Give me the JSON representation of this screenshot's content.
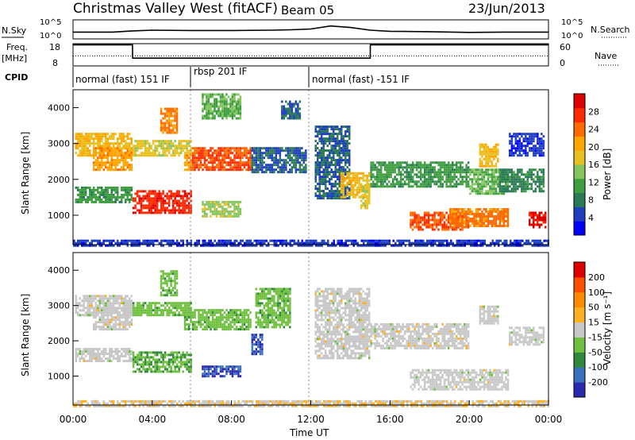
{
  "header": {
    "title": "Christmas Valley West (fitACF)",
    "beam": "Beam 05",
    "date": "23/Jun/2013"
  },
  "strip_labels": {
    "nsky": "N.Sky",
    "nsky_axis": [
      "10^5",
      "10^0"
    ],
    "nsearch": "N.Search",
    "freq": "Freq.",
    "freq_unit": "[MHz]",
    "freq_axis": [
      "18",
      "8"
    ],
    "nave": "Nave",
    "nave_axis": [
      "60",
      "0"
    ],
    "cpid": "CPID"
  },
  "modes": [
    {
      "label": "normal (fast) 151 IF",
      "start": "00:00",
      "end": "06:00"
    },
    {
      "label": "rbsp 201 IF",
      "start": "06:00",
      "end": "12:00"
    },
    {
      "label": "normal (fast) -151 IF",
      "start": "12:00",
      "end": "24:00"
    }
  ],
  "x_axis": {
    "label": "Time UT",
    "ticks": [
      "00:00",
      "04:00",
      "08:00",
      "12:00",
      "16:00",
      "20:00",
      "00:00"
    ]
  },
  "panels": [
    {
      "id": "power",
      "ylabel": "Slant Range [km]",
      "yticks": [
        "4000",
        "3000",
        "2000",
        "1000"
      ],
      "colorbar_title": "Power [dB]",
      "colorbar_ticks": [
        "28",
        "24",
        "20",
        "16",
        "12",
        "8",
        "4"
      ],
      "colors": [
        "#0000ff",
        "#1f3fc0",
        "#2a7a55",
        "#3f9e3f",
        "#85c560",
        "#e8c020",
        "#ffa500",
        "#ff6a00",
        "#ff2a00",
        "#dd0000"
      ]
    },
    {
      "id": "velocity",
      "ylabel": "Slant Range [km]",
      "yticks": [
        "4000",
        "3000",
        "2000",
        "1000"
      ],
      "colorbar_title": "Velocity [m s⁻¹]",
      "colorbar_ticks": [
        "200",
        "100",
        "50",
        "15",
        "-15",
        "-50",
        "-100",
        "-200"
      ],
      "colors": [
        "#2a2ab0",
        "#3a70c0",
        "#2e8a3a",
        "#70c040",
        "#c8c8c8",
        "#ffb020",
        "#ff8a00",
        "#ff5000",
        "#dd0000"
      ]
    }
  ],
  "chart_data": [
    {
      "type": "line",
      "title": "N.Sky / N.Search",
      "xlabel": "Time UT",
      "ylim": [
        0,
        5
      ],
      "x": [
        0,
        2,
        3,
        4,
        6,
        8,
        10,
        11,
        12,
        13,
        14,
        15,
        16,
        18,
        20,
        22,
        24
      ],
      "series": [
        {
          "name": "N.Sky",
          "values": [
            1.8,
            1.8,
            2.1,
            2.3,
            2.2,
            2.2,
            2.3,
            2.4,
            2.6,
            3.4,
            3.0,
            2.3,
            2.0,
            1.9,
            1.7,
            1.8,
            1.8
          ]
        }
      ]
    },
    {
      "type": "line",
      "title": "Freq. / Nave",
      "xlabel": "Time UT",
      "ylim": [
        8,
        18
      ],
      "x": [
        0,
        3,
        3.01,
        15,
        15.01,
        24
      ],
      "series": [
        {
          "name": "Freq.",
          "values": [
            17.5,
            17.5,
            11.5,
            11.5,
            17.5,
            17.5
          ]
        },
        {
          "name": "Nave",
          "values": [
            12.5,
            12.5,
            12.5,
            12.5,
            12.5,
            12.5
          ]
        }
      ]
    },
    {
      "type": "heatmap",
      "title": "Power [dB]",
      "xlabel": "Time UT",
      "ylabel": "Slant Range [km]",
      "xlim": [
        0,
        24
      ],
      "ylim": [
        180,
        4500
      ],
      "clim": [
        0,
        30
      ],
      "blobs": [
        [
          0.1,
          3.0,
          2700,
          3300,
          18
        ],
        [
          1.0,
          3.0,
          2300,
          2900,
          20
        ],
        [
          0.1,
          3.0,
          1400,
          1800,
          10
        ],
        [
          3.0,
          6.0,
          1100,
          1700,
          26
        ],
        [
          3.0,
          6.0,
          2700,
          3100,
          16
        ],
        [
          4.4,
          5.3,
          3300,
          4000,
          22
        ],
        [
          5.6,
          6.0,
          2300,
          2700,
          20
        ],
        [
          6.0,
          9.0,
          2300,
          2900,
          24
        ],
        [
          6.5,
          8.5,
          3700,
          4400,
          12
        ],
        [
          6.5,
          8.5,
          1000,
          1400,
          14
        ],
        [
          9.0,
          11.8,
          2200,
          2900,
          6
        ],
        [
          10.5,
          11.5,
          3700,
          4200,
          6
        ],
        [
          12.2,
          14.0,
          1500,
          3500,
          6
        ],
        [
          13.5,
          15.0,
          1500,
          2200,
          18
        ],
        [
          14.5,
          15.0,
          1200,
          1900,
          16
        ],
        [
          15.0,
          20.0,
          1800,
          2500,
          10
        ],
        [
          17.0,
          20.0,
          600,
          1100,
          24
        ],
        [
          19.0,
          22.0,
          700,
          1200,
          22
        ],
        [
          20.0,
          22.0,
          1600,
          2300,
          12
        ],
        [
          23.0,
          23.9,
          700,
          1100,
          28
        ],
        [
          21.5,
          23.8,
          1700,
          2300,
          8
        ],
        [
          22.0,
          23.8,
          2700,
          3300,
          4
        ],
        [
          20.5,
          21.5,
          2400,
          3000,
          18
        ],
        [
          0.0,
          24.0,
          180,
          320,
          4
        ]
      ]
    },
    {
      "type": "heatmap",
      "title": "Velocity [m s⁻¹]",
      "xlabel": "Time UT",
      "ylabel": "Slant Range [km]",
      "xlim": [
        0,
        24
      ],
      "ylim": [
        180,
        4500
      ],
      "clim": [
        -250,
        250
      ],
      "blobs": [
        [
          0.1,
          3.0,
          2700,
          3300,
          0
        ],
        [
          1.0,
          3.0,
          2300,
          2900,
          0
        ],
        [
          0.1,
          3.0,
          1400,
          1800,
          0
        ],
        [
          3.0,
          6.0,
          1100,
          1700,
          -80
        ],
        [
          3.0,
          6.0,
          2700,
          3100,
          -60
        ],
        [
          4.4,
          5.3,
          3300,
          4000,
          -60
        ],
        [
          5.6,
          6.0,
          2300,
          2700,
          -80
        ],
        [
          6.0,
          9.0,
          2300,
          2900,
          -60
        ],
        [
          6.5,
          8.5,
          1000,
          1300,
          -200
        ],
        [
          9.0,
          9.6,
          1600,
          2200,
          -200
        ],
        [
          9.2,
          11.0,
          2400,
          3500,
          -60
        ],
        [
          12.2,
          15.0,
          1500,
          3500,
          0
        ],
        [
          15.0,
          20.0,
          1800,
          2500,
          0
        ],
        [
          17.0,
          22.0,
          600,
          1200,
          0
        ],
        [
          20.5,
          21.5,
          2500,
          3000,
          0
        ],
        [
          22.0,
          23.8,
          1900,
          2400,
          0
        ],
        [
          0.0,
          24.0,
          180,
          320,
          20
        ]
      ]
    }
  ]
}
